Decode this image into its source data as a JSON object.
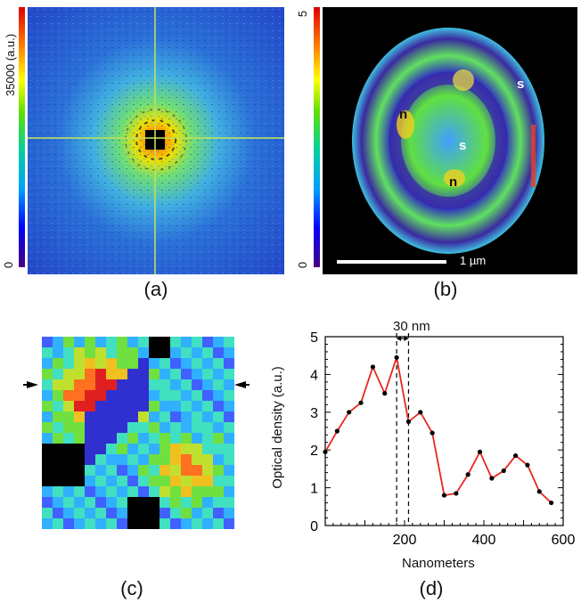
{
  "panel_a": {
    "colorbar_top_label": "35000 (a.u.)",
    "colorbar_bottom_label": "0",
    "caption": "(a)"
  },
  "panel_b": {
    "colorbar_top_label": "5",
    "colorbar_bottom_label": "0",
    "scalebar_label": "1 µm",
    "annotations": [
      "s",
      "s",
      "n",
      "n"
    ],
    "caption": "(b)"
  },
  "panel_c": {
    "caption": "(c)"
  },
  "panel_d": {
    "caption": "(d)",
    "marker_label": "30 nm"
  },
  "chart_data": {
    "type": "line",
    "xlabel": "Nanometers",
    "ylabel": "Optical density (a.u.)",
    "xlim": [
      0,
      600
    ],
    "ylim": [
      0,
      5
    ],
    "xticks": [
      200,
      400,
      600
    ],
    "yticks": [
      0,
      1,
      2,
      3,
      4,
      5
    ],
    "series": [
      {
        "x": [
          0,
          30,
          60,
          90,
          120,
          150,
          180,
          210,
          240,
          270,
          300,
          330,
          360,
          390,
          420,
          450,
          480,
          510,
          540,
          570
        ],
        "y": [
          1.95,
          2.5,
          3.0,
          3.25,
          4.2,
          3.5,
          4.45,
          2.75,
          3.0,
          2.45,
          0.8,
          0.85,
          1.35,
          1.95,
          1.25,
          1.45,
          1.85,
          1.6,
          0.9,
          0.6
        ],
        "color": "#e8281e"
      }
    ],
    "vlines": [
      180,
      210
    ]
  }
}
